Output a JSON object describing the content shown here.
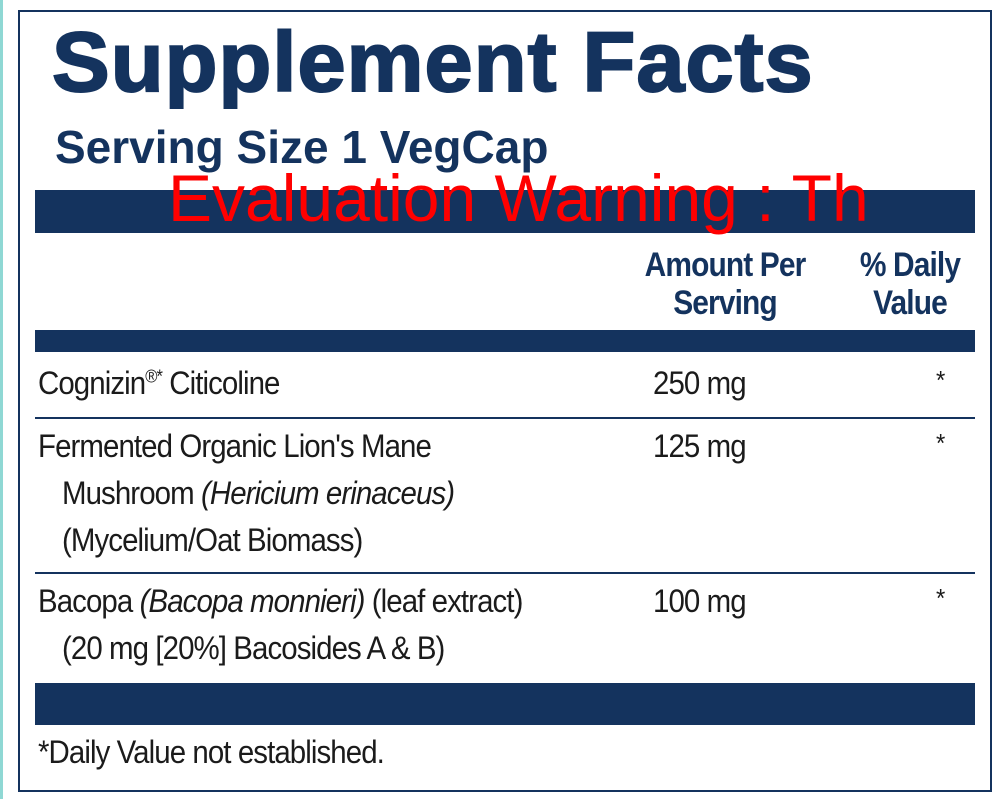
{
  "header": {
    "title": "Supplement Facts",
    "serving_size": "Serving Size 1 VegCap"
  },
  "watermark": "Evaluation Warning : Th",
  "table": {
    "columns": [
      [
        "Amount Per",
        "Serving"
      ],
      [
        "% Daily",
        "Value"
      ]
    ],
    "rows": [
      {
        "name": [
          "Cognizin",
          "®*",
          "Citicoline"
        ],
        "amount": "250 mg",
        "daily_value": "*"
      },
      {
        "name": [
          "Fermented Organic Lion's Mane",
          "Mushroom",
          "(Hericium erinaceus)",
          "(Mycelium/Oat Biomass)"
        ],
        "amount": "125 mg",
        "daily_value": "*"
      },
      {
        "name": [
          "Bacopa",
          "(Bacopa monnieri)",
          "(leaf extract)",
          "(20 mg [20%] Bacosides A & B)"
        ],
        "amount": "100 mg",
        "daily_value": "*"
      }
    ],
    "footnote": "*Daily Value not established."
  }
}
